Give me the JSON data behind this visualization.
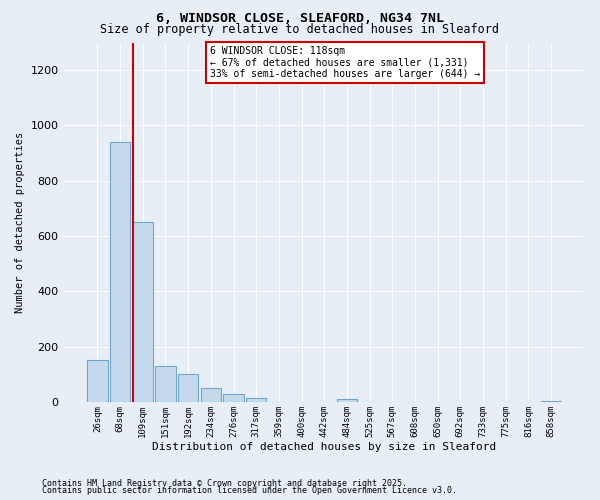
{
  "title1": "6, WINDSOR CLOSE, SLEAFORD, NG34 7NL",
  "title2": "Size of property relative to detached houses in Sleaford",
  "xlabel": "Distribution of detached houses by size in Sleaford",
  "ylabel": "Number of detached properties",
  "annotation_line1": "6 WINDSOR CLOSE: 118sqm",
  "annotation_line2": "← 67% of detached houses are smaller (1,331)",
  "annotation_line3": "33% of semi-detached houses are larger (644) →",
  "categories": [
    "26sqm",
    "68sqm",
    "109sqm",
    "151sqm",
    "192sqm",
    "234sqm",
    "276sqm",
    "317sqm",
    "359sqm",
    "400sqm",
    "442sqm",
    "484sqm",
    "525sqm",
    "567sqm",
    "608sqm",
    "650sqm",
    "692sqm",
    "733sqm",
    "775sqm",
    "816sqm",
    "858sqm"
  ],
  "values": [
    150,
    940,
    650,
    130,
    100,
    50,
    30,
    15,
    0,
    0,
    0,
    10,
    0,
    0,
    0,
    0,
    0,
    0,
    0,
    0,
    5
  ],
  "bar_color": "#c5d9ed",
  "bar_edge_color": "#6ea6cf",
  "vline_index": 2,
  "vline_color": "#cc0000",
  "annotation_box_color": "#cc0000",
  "background_color": "#e8eef5",
  "plot_bg_color": "#e8eef5",
  "ylim": [
    0,
    1300
  ],
  "yticks": [
    0,
    200,
    400,
    600,
    800,
    1000,
    1200
  ],
  "grid_color": "#ffffff",
  "footer1": "Contains HM Land Registry data © Crown copyright and database right 2025.",
  "footer2": "Contains public sector information licensed under the Open Government Licence v3.0."
}
